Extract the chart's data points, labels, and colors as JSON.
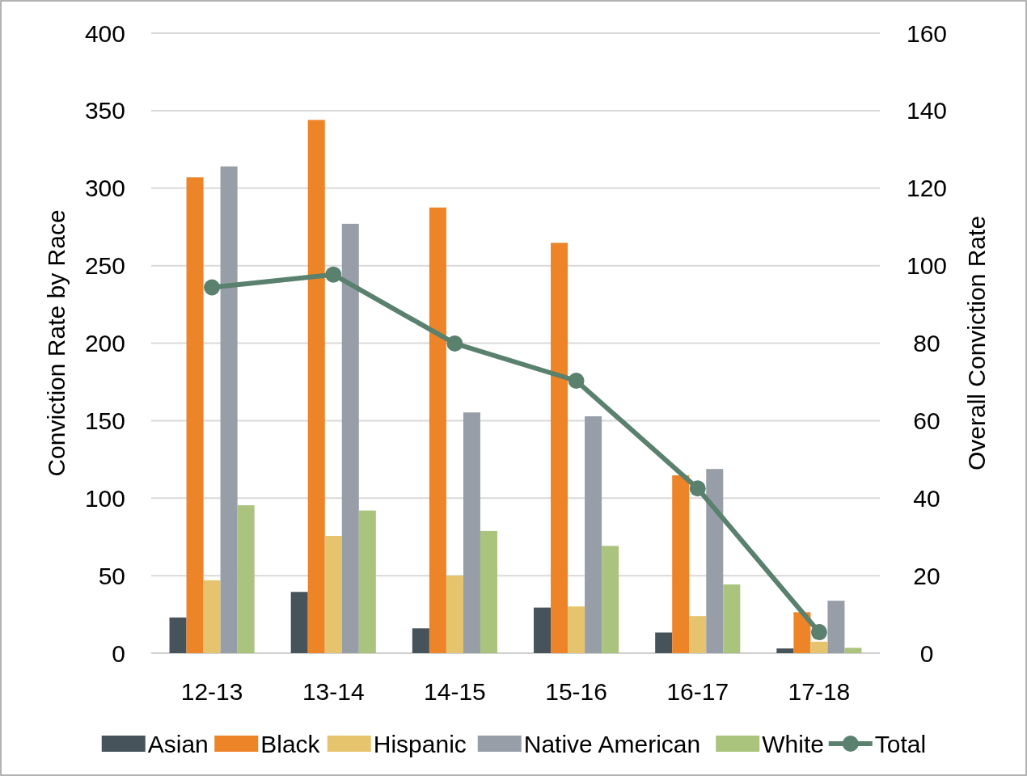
{
  "chart_data": {
    "type": "bar",
    "categories": [
      "12-13",
      "13-14",
      "14-15",
      "15-16",
      "16-17",
      "17-18"
    ],
    "ylabel": "Conviction Rate by Race",
    "y2label": "Overall Conviction Rate",
    "ylim": [
      0,
      400
    ],
    "yticks": [
      0,
      50,
      100,
      150,
      200,
      250,
      300,
      350,
      400
    ],
    "y2lim": [
      0,
      160
    ],
    "y2ticks": [
      0,
      20,
      40,
      60,
      80,
      100,
      120,
      140,
      160
    ],
    "grid": "y",
    "legend": "bottom",
    "series": [
      {
        "name": "Asian",
        "color": "#46535b",
        "values": [
          23,
          39.5,
          16,
          29.4,
          13.3,
          3
        ]
      },
      {
        "name": "Black",
        "color": "#ed8428",
        "values": [
          307,
          344,
          287.5,
          264.7,
          114.7,
          26.4
        ]
      },
      {
        "name": "Hispanic",
        "color": "#e6c46e",
        "values": [
          47,
          75.6,
          50,
          30.1,
          23.9,
          7.4
        ]
      },
      {
        "name": "Native American",
        "color": "#979ea8",
        "values": [
          314,
          277,
          155.3,
          152.8,
          118.8,
          33.8
        ]
      },
      {
        "name": "White",
        "color": "#aac37d",
        "values": [
          95.4,
          92,
          78.8,
          69.2,
          44.3,
          3.4
        ]
      },
      {
        "name": "Total",
        "type": "line",
        "axis": "y2",
        "marker": "circle",
        "color": "#5a806e",
        "values": [
          94.4,
          97.7,
          79.9,
          70.3,
          42.5,
          5.4
        ]
      }
    ]
  }
}
